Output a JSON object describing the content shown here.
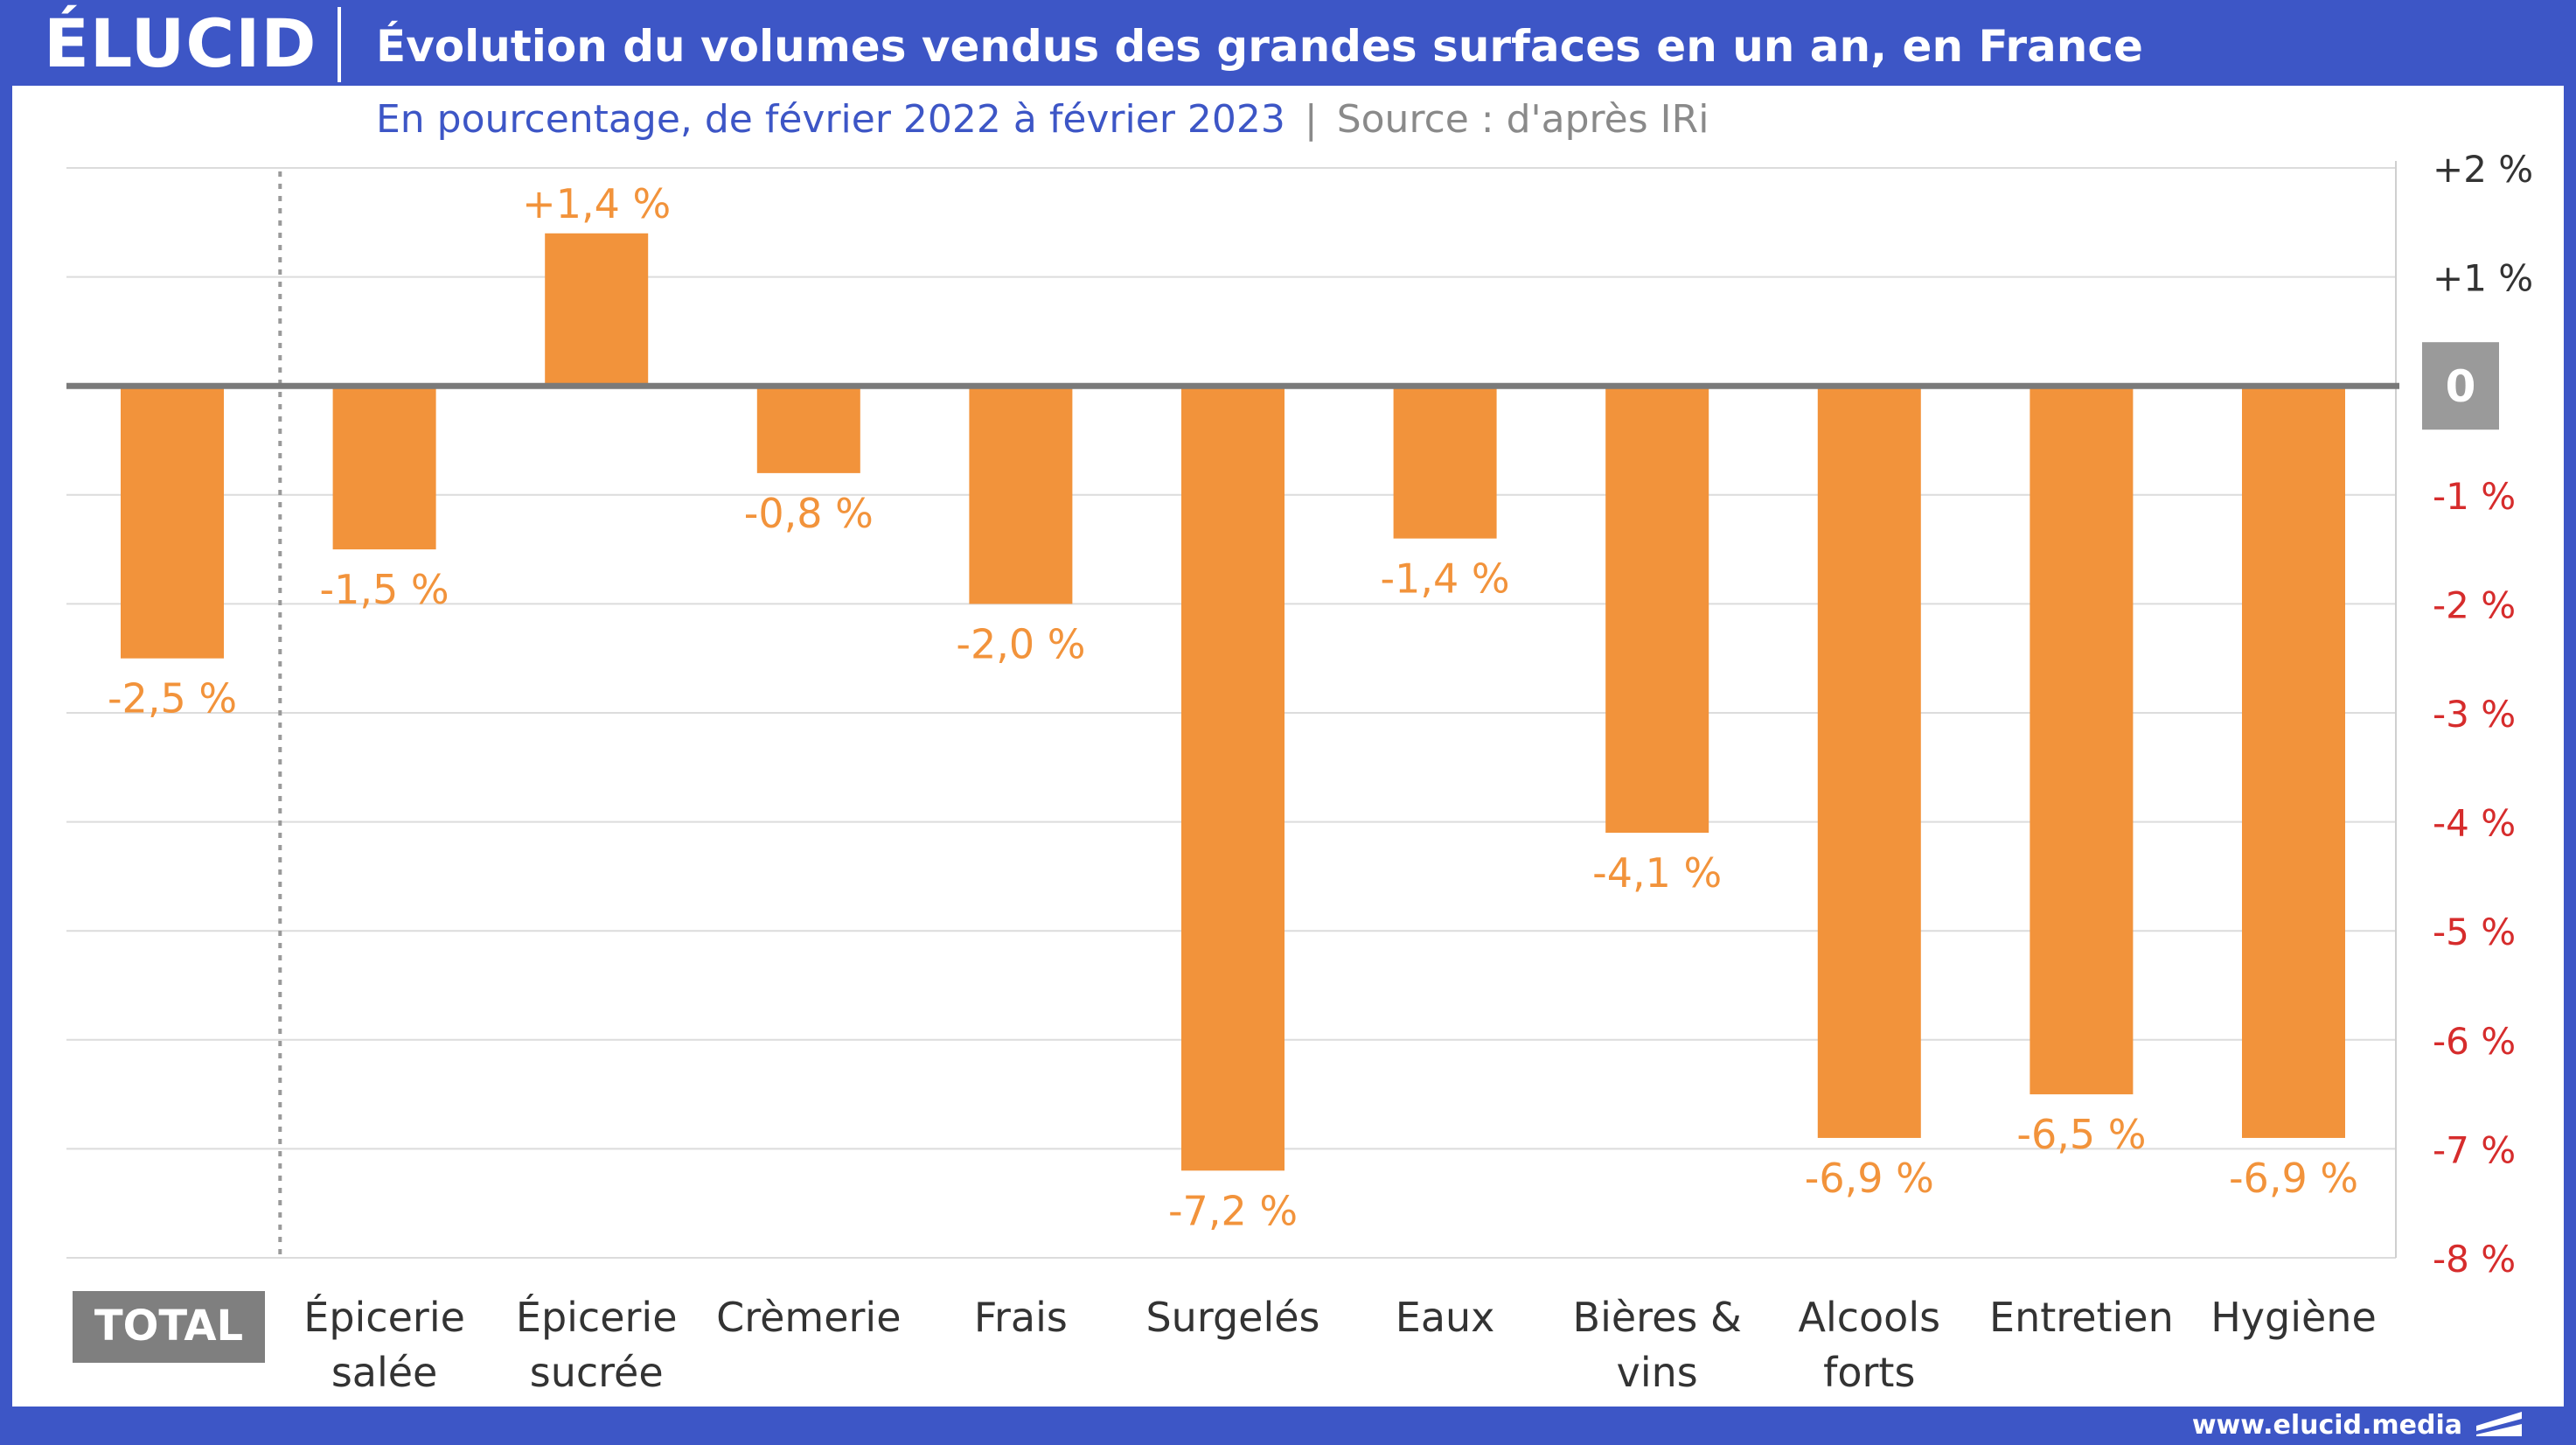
{
  "header": {
    "logo_text": "ÉLUCID",
    "title": "Évolution du volumes vendus des grandes surfaces en un an, en France"
  },
  "subtitle": {
    "main": "En pourcentage, de février 2022 à février 2023",
    "separator": "|",
    "source": "Source : d'après IRi"
  },
  "footer": {
    "url": "www.elucid.media",
    "logo_icon": "elucid-mark-icon"
  },
  "colors": {
    "bar": "#f2933b",
    "bar_label": "#f2933b",
    "negative_tick": "#d62c2c",
    "positive_tick": "#333333",
    "zero_badge_bg": "#9a9a9a",
    "total_badge_bg": "#7f7f7f",
    "frame": "#3d56c6"
  },
  "chart_data": {
    "type": "bar",
    "categories": [
      [
        "TOTAL"
      ],
      [
        "Épicerie",
        "salée"
      ],
      [
        "Épicerie",
        "sucrée"
      ],
      [
        "Crèmerie"
      ],
      [
        "Frais"
      ],
      [
        "Surgelés"
      ],
      [
        "Eaux"
      ],
      [
        "Bières &",
        "vins"
      ],
      [
        "Alcools",
        "forts"
      ],
      [
        "Entretien"
      ],
      [
        "Hygiène"
      ]
    ],
    "values": [
      -2.5,
      -1.5,
      1.4,
      -0.8,
      -2.0,
      -7.2,
      -1.4,
      -4.1,
      -6.9,
      -6.5,
      -6.9
    ],
    "value_labels": [
      "-2,5 %",
      "-1,5 %",
      "+1,4 %",
      "-0,8 %",
      "-2,0 %",
      "-7,2 %",
      "-1,4 %",
      "-4,1 %",
      "-6,9 %",
      "-6,5 %",
      "-6,9 %"
    ],
    "ylim": [
      -8,
      2
    ],
    "yticks": [
      2,
      1,
      0,
      -1,
      -2,
      -3,
      -4,
      -5,
      -6,
      -7,
      -8
    ],
    "ytick_labels": [
      "+2 %",
      "+1 %",
      "0",
      "-1 %",
      "-2 %",
      "-3 %",
      "-4 %",
      "-5 %",
      "-6 %",
      "-7 %",
      "-8 %"
    ],
    "y_axis_side": "right",
    "grid": true,
    "highlight_first_category": true,
    "xlabel": "",
    "ylabel": ""
  }
}
